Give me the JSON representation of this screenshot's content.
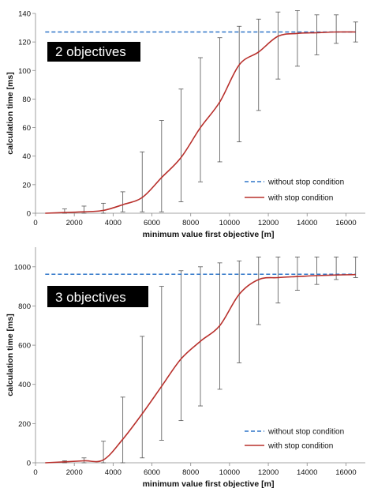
{
  "colors": {
    "without_stop": "#2e75c8",
    "with_stop": "#b8302c",
    "errorbar": "#555555",
    "label_box": "#000000",
    "label_text": "#ffffff"
  },
  "chart_data": [
    {
      "type": "line",
      "panel_label": "2 objectives",
      "xlabel": "minimum value first objective [m]",
      "ylabel": "calculation time [ms]",
      "xlim": [
        0,
        17000
      ],
      "ylim": [
        0,
        140
      ],
      "x_ticks": [
        0,
        2000,
        4000,
        6000,
        8000,
        10000,
        12000,
        14000,
        16000
      ],
      "y_ticks": [
        0,
        20,
        40,
        60,
        80,
        100,
        120,
        140
      ],
      "legend_position": "lower-right",
      "series": [
        {
          "name": "without stop condition",
          "style": "dashed",
          "x": [
            500,
            16500
          ],
          "y": [
            127,
            127
          ]
        },
        {
          "name": "with stop condition",
          "style": "solid",
          "x": [
            500,
            1500,
            2500,
            3500,
            4500,
            5500,
            6500,
            7500,
            8500,
            9500,
            10500,
            11500,
            12500,
            13500,
            14500,
            15500,
            16500
          ],
          "y": [
            0,
            0.5,
            1,
            2,
            6,
            11,
            25,
            39,
            60,
            78,
            104,
            113,
            124,
            126,
            126.5,
            127,
            127
          ],
          "error_low": [
            0,
            0,
            0,
            0,
            1,
            1,
            1,
            8,
            22,
            36,
            50,
            72,
            94,
            103,
            111,
            119,
            120
          ],
          "error_high": [
            0,
            3,
            5,
            7,
            15,
            43,
            65,
            87,
            109,
            123,
            131,
            136,
            141,
            142,
            139,
            139,
            134
          ]
        }
      ]
    },
    {
      "type": "line",
      "panel_label": "3 objectives",
      "xlabel": "minimum value first objective [m]",
      "ylabel": "calculation time [ms]",
      "xlim": [
        0,
        17000
      ],
      "ylim": [
        0,
        1100
      ],
      "x_ticks": [
        0,
        2000,
        4000,
        6000,
        8000,
        10000,
        12000,
        14000,
        16000
      ],
      "y_ticks": [
        0,
        200,
        400,
        600,
        800,
        1000
      ],
      "legend_position": "lower-right",
      "series": [
        {
          "name": "without stop condition",
          "style": "dashed",
          "x": [
            500,
            16500
          ],
          "y": [
            962,
            962
          ]
        },
        {
          "name": "with stop condition",
          "style": "solid",
          "x": [
            500,
            1500,
            2500,
            3500,
            4500,
            5500,
            6500,
            7500,
            8500,
            9500,
            10500,
            11500,
            12500,
            13500,
            14500,
            15500,
            16500
          ],
          "y": [
            0,
            5,
            10,
            15,
            120,
            250,
            390,
            530,
            620,
            700,
            860,
            935,
            945,
            950,
            955,
            958,
            960
          ],
          "error_low": [
            0,
            0,
            0,
            0,
            0,
            25,
            115,
            215,
            290,
            375,
            510,
            705,
            815,
            880,
            910,
            935,
            945
          ],
          "error_high": [
            0,
            10,
            25,
            110,
            335,
            645,
            900,
            980,
            1000,
            1020,
            1030,
            1050,
            1050,
            1050,
            1050,
            1050,
            1050
          ]
        }
      ]
    }
  ]
}
